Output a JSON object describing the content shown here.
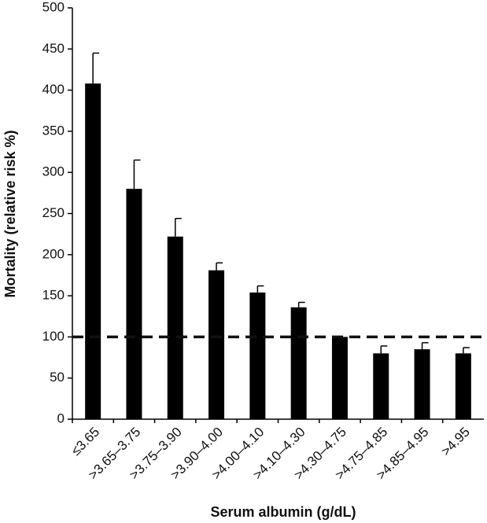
{
  "chart_data": {
    "type": "bar",
    "x_label": "Serum albumin (g/dL)",
    "y_label": "Mortality (relative risk %)",
    "categories": [
      "≤3.65",
      ">3.65–3.75",
      ">3.75–3.90",
      ">3.90–4.00",
      ">4.00–4.10",
      ">4.10–4.30",
      ">4.30–4.75",
      ">4.75–4.85",
      ">4.85–4.95",
      ">4.95"
    ],
    "values": [
      408,
      280,
      222,
      181,
      154,
      136,
      100,
      80,
      85,
      80
    ],
    "errors": [
      37,
      35,
      22,
      9,
      8,
      6,
      0,
      9,
      8,
      7
    ],
    "color": "#000000",
    "reference_line": 100,
    "ylim": [
      0,
      500
    ],
    "yticks": [
      0,
      50,
      100,
      150,
      200,
      250,
      300,
      350,
      400,
      450,
      500
    ],
    "grid": false
  }
}
